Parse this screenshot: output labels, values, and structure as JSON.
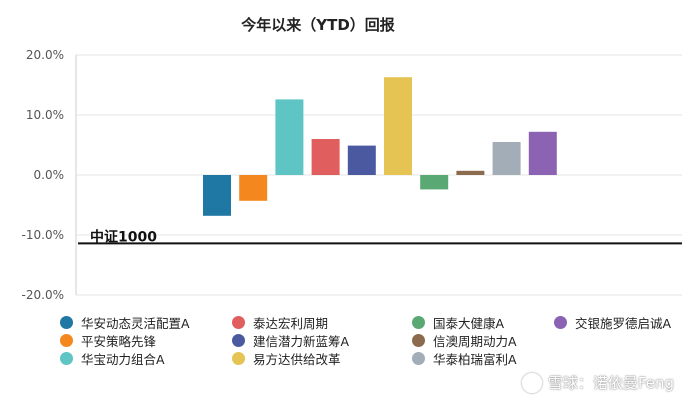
{
  "chart_data": {
    "type": "bar",
    "title": "今年以来（YTD）回报",
    "yticks": [
      "20.0%",
      "10.0%",
      "0.0%",
      "-10.0%",
      "-20.0%"
    ],
    "ylim": [
      -20,
      20
    ],
    "grid": true,
    "legend_position": "bottom",
    "series": [
      {
        "name": "华安动态灵活配置A",
        "value": -6.8,
        "color": "#1f77a4"
      },
      {
        "name": "平安策略先锋",
        "value": -4.3,
        "color": "#f5871f"
      },
      {
        "name": "华宝动力组合A",
        "value": 12.6,
        "color": "#5ec4c4"
      },
      {
        "name": "泰达宏利周期",
        "value": 6.0,
        "color": "#e05e5e"
      },
      {
        "name": "建信潜力新蓝筹A",
        "value": 4.9,
        "color": "#4b5aa0"
      },
      {
        "name": "易方达供给改革",
        "value": 16.3,
        "color": "#e5c453"
      },
      {
        "name": "国泰大健康A",
        "value": -2.4,
        "color": "#5aa874"
      },
      {
        "name": "信澳周期动力A",
        "value": 0.7,
        "color": "#8b6a4e"
      },
      {
        "name": "华泰柏瑞富利A",
        "value": 5.5,
        "color": "#a2adb8"
      },
      {
        "name": "交银施罗德启诚A",
        "value": 7.2,
        "color": "#8c63b3"
      }
    ],
    "reference_line": {
      "label": "中证1000",
      "value": -11.4
    }
  },
  "watermark": {
    "text": "雪球：诺依曼Feng"
  }
}
